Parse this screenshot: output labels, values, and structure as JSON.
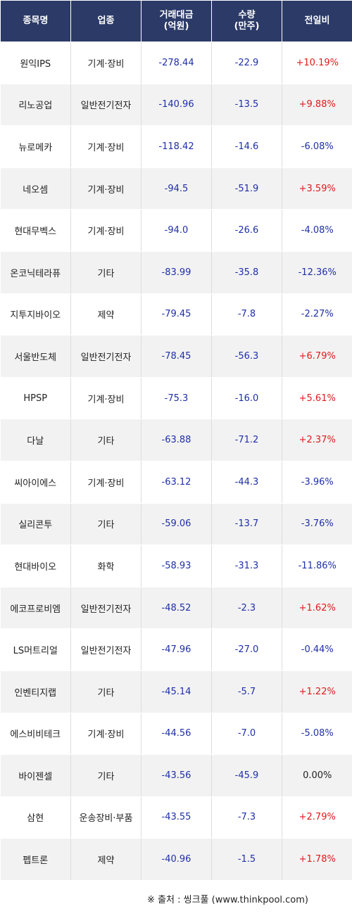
{
  "header": {
    "col_name": "종목명",
    "col_sector": "업종",
    "col_amount_line1": "거래대금",
    "col_amount_line2": "(억원)",
    "col_qty_line1": "수량",
    "col_qty_line2": "(만주)",
    "col_change": "전일비"
  },
  "rows": [
    {
      "name": "원익IPS",
      "sector": "기계·장비",
      "amount": "-278.44",
      "qty": "-22.9",
      "change": "+10.19%",
      "dir": "up"
    },
    {
      "name": "리노공업",
      "sector": "일반전기전자",
      "amount": "-140.96",
      "qty": "-13.5",
      "change": "+9.88%",
      "dir": "up"
    },
    {
      "name": "뉴로메카",
      "sector": "기계·장비",
      "amount": "-118.42",
      "qty": "-14.6",
      "change": "-6.08%",
      "dir": "down"
    },
    {
      "name": "네오셈",
      "sector": "기계·장비",
      "amount": "-94.5",
      "qty": "-51.9",
      "change": "+3.59%",
      "dir": "up"
    },
    {
      "name": "현대무벡스",
      "sector": "기계·장비",
      "amount": "-94.0",
      "qty": "-26.6",
      "change": "-4.08%",
      "dir": "down"
    },
    {
      "name": "온코닉테라퓨",
      "sector": "기타",
      "amount": "-83.99",
      "qty": "-35.8",
      "change": "-12.36%",
      "dir": "down"
    },
    {
      "name": "지투지바이오",
      "sector": "제약",
      "amount": "-79.45",
      "qty": "-7.8",
      "change": "-2.27%",
      "dir": "down"
    },
    {
      "name": "서울반도체",
      "sector": "일반전기전자",
      "amount": "-78.45",
      "qty": "-56.3",
      "change": "+6.79%",
      "dir": "up"
    },
    {
      "name": "HPSP",
      "sector": "기계·장비",
      "amount": "-75.3",
      "qty": "-16.0",
      "change": "+5.61%",
      "dir": "up"
    },
    {
      "name": "다날",
      "sector": "기타",
      "amount": "-63.88",
      "qty": "-71.2",
      "change": "+2.37%",
      "dir": "up"
    },
    {
      "name": "씨아이에스",
      "sector": "기계·장비",
      "amount": "-63.12",
      "qty": "-44.3",
      "change": "-3.96%",
      "dir": "down"
    },
    {
      "name": "실리콘투",
      "sector": "기타",
      "amount": "-59.06",
      "qty": "-13.7",
      "change": "-3.76%",
      "dir": "down"
    },
    {
      "name": "현대바이오",
      "sector": "화학",
      "amount": "-58.93",
      "qty": "-31.3",
      "change": "-11.86%",
      "dir": "down"
    },
    {
      "name": "에코프로비엠",
      "sector": "일반전기전자",
      "amount": "-48.52",
      "qty": "-2.3",
      "change": "+1.62%",
      "dir": "up"
    },
    {
      "name": "LS머트리얼",
      "sector": "일반전기전자",
      "amount": "-47.96",
      "qty": "-27.0",
      "change": "-0.44%",
      "dir": "down"
    },
    {
      "name": "인벤티지랩",
      "sector": "기타",
      "amount": "-45.14",
      "qty": "-5.7",
      "change": "+1.22%",
      "dir": "up"
    },
    {
      "name": "에스비비테크",
      "sector": "기계·장비",
      "amount": "-44.56",
      "qty": "-7.0",
      "change": "-5.08%",
      "dir": "down"
    },
    {
      "name": "바이젠셀",
      "sector": "기타",
      "amount": "-43.56",
      "qty": "-45.9",
      "change": "0.00%",
      "dir": "flat"
    },
    {
      "name": "삼현",
      "sector": "운송장비·부품",
      "amount": "-43.55",
      "qty": "-7.3",
      "change": "+2.79%",
      "dir": "up"
    },
    {
      "name": "펩트론",
      "sector": "제약",
      "amount": "-40.96",
      "qty": "-1.5",
      "change": "+1.78%",
      "dir": "up"
    }
  ],
  "source": "※ 출처 : 씽크풀 (www.thinkpool.com)",
  "colors": {
    "header_bg": "#2b3a67",
    "up": "#e01a1a",
    "down": "#1f2fa8",
    "row_alt": "#f2f2f2"
  }
}
